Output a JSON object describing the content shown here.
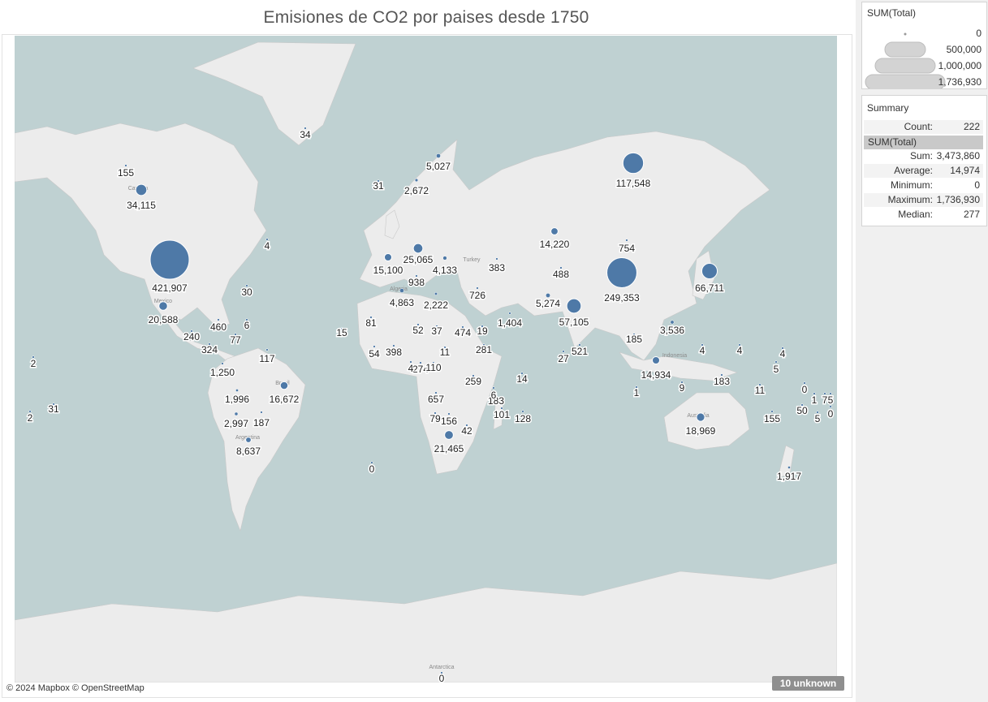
{
  "title": "Emisiones de CO2 por paises desde 1750",
  "map": {
    "attribution": "© 2024 Mapbox © OpenStreetMap",
    "unknown": "10 unknown",
    "colors": {
      "ocean": "#bfd1d2",
      "land": "#ececec",
      "border": "#c9c9c9",
      "marker": "#4e79a7"
    },
    "place_labels": [
      "Canada",
      "Mexico",
      "Brasil",
      "Argentina",
      "Algeria",
      "Turkey",
      "India",
      "Indonesia",
      "Australia",
      "Antarctica"
    ]
  },
  "legend": {
    "title": "SUM(Total)",
    "items": [
      "0",
      "500,000",
      "1,000,000",
      "1,736,930"
    ]
  },
  "summary": {
    "title": "Summary",
    "count_label": "Count:",
    "count": "222",
    "field": "SUM(Total)",
    "rows": [
      {
        "label": "Sum:",
        "value": "3,473,860"
      },
      {
        "label": "Average:",
        "value": "14,974"
      },
      {
        "label": "Minimum:",
        "value": "0"
      },
      {
        "label": "Maximum:",
        "value": "1,736,930"
      },
      {
        "label": "Median:",
        "value": "277"
      }
    ]
  },
  "points": [
    {
      "label": "421,907",
      "value": 421907
    },
    {
      "label": "249,353",
      "value": 249353
    },
    {
      "label": "117,548",
      "value": 117548
    },
    {
      "label": "66,711",
      "value": 66711
    },
    {
      "label": "57,105",
      "value": 57105
    },
    {
      "label": "34,115",
      "value": 34115
    },
    {
      "label": "25,065",
      "value": 25065
    },
    {
      "label": "21,465",
      "value": 21465
    },
    {
      "label": "20,588",
      "value": 20588
    },
    {
      "label": "18,969",
      "value": 18969
    },
    {
      "label": "16,672",
      "value": 16672
    },
    {
      "label": "15,100",
      "value": 15100
    },
    {
      "label": "14,934",
      "value": 14934
    },
    {
      "label": "14,220",
      "value": 14220
    },
    {
      "label": "8,637",
      "value": 8637
    },
    {
      "label": "5,274",
      "value": 5274
    },
    {
      "label": "5,027",
      "value": 5027
    },
    {
      "label": "4,863",
      "value": 4863
    },
    {
      "label": "4,133",
      "value": 4133
    },
    {
      "label": "3,536",
      "value": 3536
    },
    {
      "label": "2,997",
      "value": 2997
    },
    {
      "label": "2,672",
      "value": 2672
    },
    {
      "label": "2,222",
      "value": 2222
    },
    {
      "label": "1,996",
      "value": 1996
    },
    {
      "label": "1,917",
      "value": 1917
    },
    {
      "label": "1,404",
      "value": 1404
    },
    {
      "label": "1,250",
      "value": 1250
    },
    {
      "label": "938",
      "value": 938
    },
    {
      "label": "754",
      "value": 754
    },
    {
      "label": "726",
      "value": 726
    },
    {
      "label": "657",
      "value": 657
    },
    {
      "label": "521",
      "value": 521
    },
    {
      "label": "488",
      "value": 488
    },
    {
      "label": "474",
      "value": 474
    },
    {
      "label": "460",
      "value": 460
    },
    {
      "label": "398",
      "value": 398
    },
    {
      "label": "383",
      "value": 383
    },
    {
      "label": "324",
      "value": 324
    },
    {
      "label": "281",
      "value": 281
    },
    {
      "label": "274",
      "value": 274
    },
    {
      "label": "259",
      "value": 259
    },
    {
      "label": "240",
      "value": 240
    },
    {
      "label": "187",
      "value": 187
    },
    {
      "label": "185",
      "value": 185
    },
    {
      "label": "183",
      "value": 183
    },
    {
      "label": "183",
      "value": 183
    },
    {
      "label": "156",
      "value": 156
    },
    {
      "label": "155",
      "value": 155
    },
    {
      "label": "155",
      "value": 155
    },
    {
      "label": "128",
      "value": 128
    },
    {
      "label": "117",
      "value": 117
    },
    {
      "label": "110",
      "value": 110
    },
    {
      "label": "101",
      "value": 101
    },
    {
      "label": "81",
      "value": 81
    },
    {
      "label": "79",
      "value": 79
    },
    {
      "label": "77",
      "value": 77
    },
    {
      "label": "54",
      "value": 54
    },
    {
      "label": "52",
      "value": 52
    },
    {
      "label": "50",
      "value": 50
    },
    {
      "label": "42",
      "value": 42
    },
    {
      "label": "37",
      "value": 37
    },
    {
      "label": "34",
      "value": 34
    },
    {
      "label": "31",
      "value": 31
    },
    {
      "label": "31",
      "value": 31
    },
    {
      "label": "30",
      "value": 30
    },
    {
      "label": "27",
      "value": 27
    },
    {
      "label": "19",
      "value": 19
    },
    {
      "label": "15",
      "value": 15
    },
    {
      "label": "14",
      "value": 14
    },
    {
      "label": "11",
      "value": 11
    },
    {
      "label": "11",
      "value": 11
    },
    {
      "label": "9",
      "value": 9
    },
    {
      "label": "7",
      "value": 7
    },
    {
      "label": "6",
      "value": 6
    },
    {
      "label": "6",
      "value": 6
    },
    {
      "label": "5",
      "value": 5
    },
    {
      "label": "5",
      "value": 5
    },
    {
      "label": "5",
      "value": 5
    },
    {
      "label": "4",
      "value": 4
    },
    {
      "label": "4",
      "value": 4
    },
    {
      "label": "4",
      "value": 4
    },
    {
      "label": "4",
      "value": 4
    },
    {
      "label": "4",
      "value": 4
    },
    {
      "label": "2",
      "value": 2
    },
    {
      "label": "2",
      "value": 2
    },
    {
      "label": "1",
      "value": 1
    },
    {
      "label": "1",
      "value": 1
    },
    {
      "label": "0",
      "value": 0
    },
    {
      "label": "0",
      "value": 0
    },
    {
      "label": "0",
      "value": 0
    },
    {
      "label": "0",
      "value": 0
    }
  ]
}
